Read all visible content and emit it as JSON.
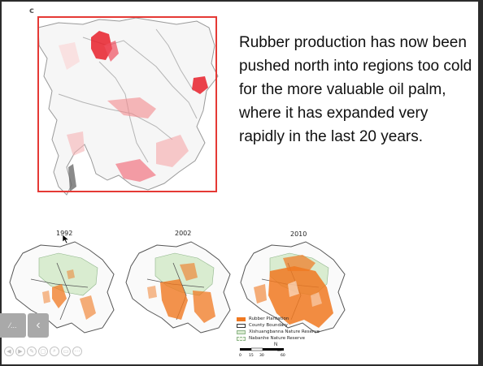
{
  "slide": {
    "corner_mark": "c",
    "body_text": "Rubber production has now been pushed north into regions too cold for the more valuable oil palm, where it has expanded very rapidly in the last 20 years.",
    "years": [
      "1992",
      "2002",
      "2010"
    ],
    "legend": [
      {
        "label": "Rubber Plantation",
        "color": "#f07820"
      },
      {
        "label": "County Boundary",
        "color": "#ffffff"
      },
      {
        "label": "Xishuangbanna Nature Reserve",
        "color": "#d9ecd0"
      },
      {
        "label": "Nabanhe Nature Reserve",
        "color": "#eef6e6"
      }
    ],
    "scale": {
      "ticks": [
        "0",
        "15",
        "30",
        "60"
      ],
      "unit": "KM",
      "north": "N"
    }
  },
  "toolbar": {
    "left_label": "⁄...",
    "prev_icon": "‹",
    "controls": [
      "◀",
      "▶",
      "✎",
      "▢",
      "⌕",
      "▭",
      "⋯"
    ]
  },
  "colors": {
    "frame": "#e53935",
    "rubber": "#f07820",
    "background": "#2b2b2b"
  }
}
